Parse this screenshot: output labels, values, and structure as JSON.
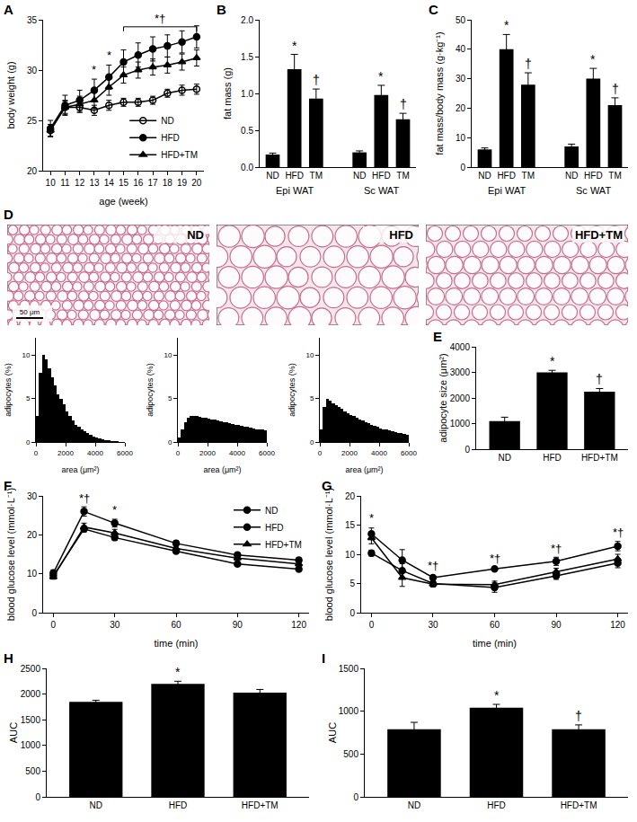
{
  "chart_data": [
    {
      "panel": "A",
      "type": "line",
      "xlabel": "age (week)",
      "ylabel": "body weight (g)",
      "x": [
        10,
        11,
        12,
        13,
        14,
        15,
        16,
        17,
        18,
        19,
        20
      ],
      "xlim": [
        9.5,
        20.5
      ],
      "xticks": [
        10,
        11,
        12,
        13,
        14,
        15,
        16,
        17,
        18,
        19,
        20
      ],
      "ylim": [
        20,
        35
      ],
      "yticks": [
        20,
        25,
        30,
        35
      ],
      "grid": false,
      "legend": "bottom right",
      "series": [
        {
          "name": "ND",
          "color": "#000000",
          "marker": "open circle",
          "values": [
            24.0,
            26.3,
            26.3,
            26.0,
            26.5,
            26.8,
            26.8,
            27.0,
            27.7,
            28.0,
            28.1
          ],
          "errors": [
            0.6,
            0.6,
            0.5,
            0.5,
            0.5,
            0.4,
            0.4,
            0.4,
            0.4,
            0.5,
            0.5
          ]
        },
        {
          "name": "HFD",
          "color": "#000000",
          "marker": "circle",
          "values": [
            24.2,
            26.5,
            27.0,
            28.0,
            29.3,
            30.8,
            31.5,
            32.1,
            32.4,
            32.8,
            33.3
          ],
          "errors": [
            0.8,
            1.0,
            1.0,
            1.1,
            1.2,
            1.2,
            1.2,
            1.2,
            1.1,
            1.1,
            1.1
          ]
        },
        {
          "name": "HFD+TM",
          "color": "#000000",
          "marker": "triangle",
          "values": [
            24.0,
            26.3,
            26.6,
            27.0,
            28.3,
            29.5,
            30.0,
            30.3,
            30.5,
            30.8,
            31.2
          ],
          "errors": [
            0.6,
            0.7,
            0.8,
            0.8,
            0.8,
            0.8,
            0.8,
            0.8,
            0.8,
            0.8,
            0.8
          ]
        }
      ],
      "annotations": [
        {
          "x": 13,
          "y": 29.2,
          "text": "*"
        },
        {
          "x": 14,
          "y": 30.6,
          "text": "*"
        },
        {
          "x": 17.5,
          "y": 34.3,
          "text": "*†",
          "span": [
            15,
            20
          ]
        }
      ]
    },
    {
      "panel": "B",
      "type": "bar",
      "ylabel": "fat mass (g)",
      "color": "#000000",
      "grid": false,
      "ylim": [
        0,
        2
      ],
      "yticks": [
        {
          "value": 0,
          "label": "0.0"
        },
        {
          "value": 0.5,
          "label": "0.5"
        },
        {
          "value": 1,
          "label": "1.0"
        },
        {
          "value": 1.5,
          "label": "1.5"
        },
        {
          "value": 2,
          "label": "2.0"
        }
      ],
      "groups": [
        {
          "name": "Epi WAT",
          "categories": [
            "ND",
            "HFD",
            "TM"
          ],
          "values": [
            0.17,
            1.33,
            0.93
          ],
          "errors": [
            0.02,
            0.2,
            0.13
          ],
          "significance": [
            null,
            "*",
            "†"
          ]
        },
        {
          "name": "Sc WAT",
          "categories": [
            "ND",
            "HFD",
            "TM"
          ],
          "values": [
            0.2,
            0.98,
            0.65
          ],
          "errors": [
            0.02,
            0.13,
            0.08
          ],
          "significance": [
            null,
            "*",
            "†"
          ]
        }
      ]
    },
    {
      "panel": "C",
      "type": "bar",
      "ylabel": "fat mass/body mass (g·kg⁻¹)",
      "color": "#000000",
      "grid": false,
      "ylim": [
        0,
        50
      ],
      "yticks": [
        0,
        10,
        20,
        30,
        40,
        50
      ],
      "groups": [
        {
          "name": "Epi WAT",
          "categories": [
            "ND",
            "HFD",
            "TM"
          ],
          "values": [
            6,
            40,
            28
          ],
          "errors": [
            0.5,
            5,
            4
          ],
          "significance": [
            null,
            "*",
            "†"
          ]
        },
        {
          "name": "Sc WAT",
          "categories": [
            "ND",
            "HFD",
            "TM"
          ],
          "values": [
            7,
            30,
            21
          ],
          "errors": [
            0.8,
            3.5,
            2.5
          ],
          "significance": [
            null,
            "*",
            "†"
          ]
        }
      ]
    },
    {
      "panel": "D",
      "type": "histogram",
      "xlabel": "area (μm²)",
      "ylabel": "adipocytes (%)",
      "color": "#000000",
      "grid": false,
      "scale_bar": "50 μm",
      "bins": [
        0,
        200,
        400,
        600,
        800,
        1000,
        1200,
        1400,
        1600,
        1800,
        2000,
        2200,
        2400,
        2600,
        2800,
        3000,
        3200,
        3400,
        3600,
        3800,
        4000,
        4200,
        4400,
        4600,
        4800,
        5000,
        5200,
        5400,
        5600,
        5800,
        6000
      ],
      "xlim": [
        0,
        6000
      ],
      "xticks": [
        0,
        2000,
        4000,
        6000
      ],
      "ylim": [
        0,
        12
      ],
      "yticks": [
        0,
        5,
        10
      ],
      "series": [
        {
          "name": "ND",
          "values": [
            3,
            8,
            10,
            9.5,
            8.5,
            7.5,
            6.5,
            5.5,
            5,
            4.3,
            3.5,
            3,
            2.5,
            2,
            1.8,
            1.5,
            1.2,
            1,
            0.8,
            0.6,
            0.5,
            0.4,
            0.3,
            0.2,
            0.2,
            0.1,
            0.1,
            0.1,
            0,
            0
          ]
        },
        {
          "name": "HFD",
          "values": [
            0.5,
            1.5,
            2.3,
            2.8,
            3,
            3,
            3,
            2.9,
            2.8,
            2.8,
            2.7,
            2.6,
            2.6,
            2.5,
            2.4,
            2.3,
            2.3,
            2.2,
            2.1,
            2,
            2,
            1.9,
            1.8,
            1.8,
            1.7,
            1.6,
            1.5,
            1.5,
            1.4,
            1.3
          ]
        },
        {
          "name": "HFD+TM",
          "values": [
            1.5,
            4,
            5,
            4.8,
            4.5,
            4.2,
            4,
            3.8,
            3.5,
            3.3,
            3.1,
            3,
            2.8,
            2.6,
            2.5,
            2.3,
            2.2,
            2,
            1.9,
            1.8,
            1.6,
            1.5,
            1.4,
            1.3,
            1.2,
            1.1,
            1,
            1,
            0.9,
            0.8
          ]
        }
      ]
    },
    {
      "panel": "E",
      "type": "bar",
      "ylabel": "adipocyte size (μm²)",
      "color": "#000000",
      "grid": false,
      "ylim": [
        0,
        4000
      ],
      "yticks": [
        0,
        1000,
        2000,
        3000,
        4000
      ],
      "categories": [
        "ND",
        "HFD",
        "HFD+TM"
      ],
      "values": [
        1100,
        3000,
        2250
      ],
      "errors": [
        150,
        80,
        120
      ],
      "significance": [
        null,
        "*",
        "†"
      ]
    },
    {
      "panel": "F",
      "type": "line",
      "xlabel": "time (min)",
      "ylabel": "blood glucose level (mmol·L⁻¹)",
      "x": [
        0,
        15,
        30,
        60,
        90,
        120
      ],
      "xlim": [
        -5,
        125
      ],
      "xticks": [
        0,
        30,
        60,
        90,
        120
      ],
      "ylim": [
        0,
        30
      ],
      "yticks": [
        0,
        10,
        20,
        30
      ],
      "grid": false,
      "legend": "top right",
      "series": [
        {
          "name": "ND",
          "color": "#000000",
          "marker": "circle",
          "values": [
            9.5,
            21.5,
            19.3,
            15.8,
            12.5,
            11.2
          ],
          "errors": [
            0.5,
            0.8,
            0.7,
            0.5,
            0.5,
            0.5
          ]
        },
        {
          "name": "HFD",
          "color": "#000000",
          "marker": "circle",
          "values": [
            10.2,
            26,
            23,
            17.8,
            14.8,
            13.5
          ],
          "errors": [
            0.8,
            1.2,
            1,
            0.7,
            0.6,
            0.6
          ]
        },
        {
          "name": "HFD+TM",
          "color": "#000000",
          "marker": "triangle",
          "values": [
            9.2,
            22,
            20.5,
            16.5,
            14,
            12.5
          ],
          "errors": [
            0.6,
            1,
            0.9,
            0.6,
            0.6,
            0.6
          ]
        }
      ],
      "annotations": [
        {
          "x": 15,
          "y": 27.3,
          "text": "*†"
        },
        {
          "x": 30,
          "y": 24.2,
          "text": "*"
        }
      ]
    },
    {
      "panel": "G",
      "type": "line",
      "xlabel": "time (min)",
      "ylabel": "blood glucose level (mmol·L⁻¹)",
      "x": [
        0,
        15,
        30,
        60,
        90,
        120
      ],
      "xlim": [
        -5,
        125
      ],
      "xticks": [
        0,
        30,
        60,
        90,
        120
      ],
      "ylim": [
        0,
        20
      ],
      "yticks": [
        0,
        5,
        10,
        15,
        20
      ],
      "grid": false,
      "series": [
        {
          "name": "ND",
          "color": "#000000",
          "marker": "circle",
          "values": [
            10.2,
            7.2,
            5.0,
            4.3,
            6.3,
            8.5
          ],
          "errors": [
            0.5,
            1.2,
            0.5,
            0.8,
            0.6,
            0.8
          ]
        },
        {
          "name": "HFD",
          "color": "#000000",
          "marker": "circle",
          "values": [
            13.5,
            9,
            6,
            7.5,
            8.8,
            11.4
          ],
          "errors": [
            1,
            1.8,
            0.4,
            0.2,
            0.7,
            0.8
          ]
        },
        {
          "name": "HFD+TM",
          "color": "#000000",
          "marker": "triangle",
          "values": [
            12.8,
            6,
            4.9,
            4.8,
            7,
            9.2
          ],
          "errors": [
            1,
            1.5,
            0.5,
            0.6,
            0.6,
            0.8
          ]
        }
      ],
      "annotations": [
        {
          "x": 0,
          "y": 14.8,
          "text": "*"
        },
        {
          "x": 30,
          "y": 6.6,
          "text": "*†"
        },
        {
          "x": 60,
          "y": 7.9,
          "text": "*†"
        },
        {
          "x": 90,
          "y": 9.6,
          "text": "*†"
        },
        {
          "x": 120,
          "y": 12.3,
          "text": "*†"
        }
      ]
    },
    {
      "panel": "H",
      "type": "bar",
      "ylabel": "AUC",
      "color": "#000000",
      "grid": false,
      "ylim": [
        0,
        2500
      ],
      "yticks": [
        0,
        500,
        1000,
        1500,
        2000,
        2500
      ],
      "categories": [
        "ND",
        "HFD",
        "HFD+TM"
      ],
      "values": [
        1850,
        2200,
        2030
      ],
      "errors": [
        30,
        50,
        60
      ],
      "significance": [
        null,
        "*",
        null
      ]
    },
    {
      "panel": "I",
      "type": "bar",
      "ylabel": "AUC",
      "color": "#000000",
      "grid": false,
      "ylim": [
        0,
        1500
      ],
      "yticks": [
        0,
        500,
        1000,
        1500
      ],
      "categories": [
        "ND",
        "HFD",
        "HFD+TM"
      ],
      "values": [
        790,
        1040,
        790
      ],
      "errors": [
        80,
        40,
        50
      ],
      "significance": [
        null,
        "*",
        "†"
      ]
    }
  ]
}
